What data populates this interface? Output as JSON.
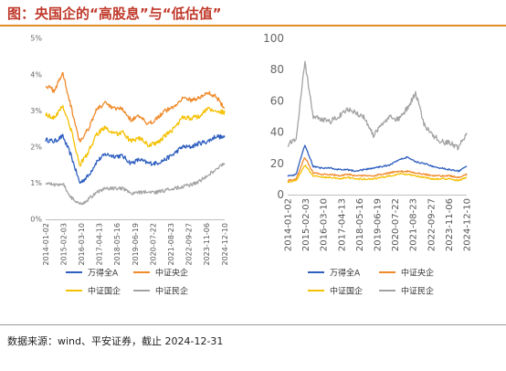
{
  "title": "图：央国企的“高股息”与“低估值”",
  "source": "数据来源：wind、平安证券，截止 2024-12-31",
  "chart_data": [
    {
      "type": "line",
      "x_ticks": [
        "2014-01-02",
        "2015-02-03",
        "2016-03-10",
        "2017-04-13",
        "2018-05-16",
        "2019-06-19",
        "2020-07-22",
        "2021-08-23",
        "2022-09-27",
        "2023-11-06",
        "2024-12-10"
      ],
      "y_ticks": [
        "0%",
        "1%",
        "2%",
        "3%",
        "4%",
        "5%"
      ],
      "ylim": [
        0,
        5
      ],
      "grid": false,
      "legend_position": "bottom",
      "series": [
        {
          "name": "万得全A",
          "color": "#2f5fbf",
          "values": [
            2.2,
            2.15,
            2.3,
            1.75,
            1.0,
            1.2,
            1.6,
            1.8,
            1.75,
            1.75,
            1.55,
            1.65,
            1.55,
            1.55,
            1.65,
            1.8,
            2.0,
            2.0,
            2.1,
            2.15,
            2.3,
            2.25
          ]
        },
        {
          "name": "中证央企",
          "color": "#f08a2a",
          "values": [
            3.7,
            3.55,
            4.05,
            3.1,
            2.15,
            2.5,
            3.05,
            3.2,
            3.05,
            3.05,
            2.75,
            2.85,
            2.6,
            2.8,
            3.0,
            3.1,
            3.35,
            3.3,
            3.35,
            3.5,
            3.4,
            3.05
          ]
        },
        {
          "name": "中证国企",
          "color": "#f5c000",
          "values": [
            2.9,
            2.8,
            3.15,
            2.45,
            1.5,
            1.85,
            2.35,
            2.55,
            2.35,
            2.4,
            2.15,
            2.25,
            2.05,
            2.1,
            2.3,
            2.5,
            2.8,
            2.8,
            2.85,
            3.05,
            3.0,
            2.95
          ]
        },
        {
          "name": "中证民企",
          "color": "#a3a3a3",
          "values": [
            1.0,
            0.95,
            1.0,
            0.6,
            0.4,
            0.55,
            0.75,
            0.85,
            0.85,
            0.85,
            0.7,
            0.75,
            0.75,
            0.75,
            0.8,
            0.85,
            0.9,
            0.95,
            1.05,
            1.2,
            1.4,
            1.55
          ]
        }
      ]
    },
    {
      "type": "line",
      "x_ticks": [
        "2014-01-02",
        "2015-02-03",
        "2016-03-10",
        "2017-04-13",
        "2018-05-16",
        "2019-06-19",
        "2020-07-22",
        "2021-08-23",
        "2022-09-27",
        "2023-11-06",
        "2024-12-10"
      ],
      "y_ticks": [
        "0",
        "20",
        "40",
        "60",
        "80",
        "100"
      ],
      "ylim": [
        0,
        100
      ],
      "grid": false,
      "legend_position": "bottom",
      "series": [
        {
          "name": "万得全A",
          "color": "#2f5fbf",
          "values": [
            12,
            13,
            32,
            18,
            17,
            17,
            16,
            16,
            15,
            16,
            17,
            18,
            19,
            22,
            24,
            21,
            20,
            18,
            17,
            16,
            15,
            18
          ]
        },
        {
          "name": "中证央企",
          "color": "#f08a2a",
          "values": [
            9,
            10,
            24,
            14,
            13,
            13,
            12,
            13,
            12,
            12,
            12,
            13,
            14,
            15,
            15,
            14,
            13,
            12,
            12,
            12,
            11,
            13
          ]
        },
        {
          "name": "中证国企",
          "color": "#f5c000",
          "values": [
            8,
            9,
            19,
            12,
            11,
            11,
            10,
            11,
            10,
            10,
            10,
            11,
            12,
            13,
            13,
            12,
            11,
            10,
            10,
            10,
            9,
            11
          ]
        },
        {
          "name": "中证民企",
          "color": "#a3a3a3",
          "values": [
            32,
            36,
            85,
            50,
            48,
            47,
            50,
            55,
            52,
            50,
            38,
            44,
            50,
            48,
            55,
            65,
            45,
            38,
            34,
            33,
            30,
            40
          ]
        }
      ]
    }
  ]
}
